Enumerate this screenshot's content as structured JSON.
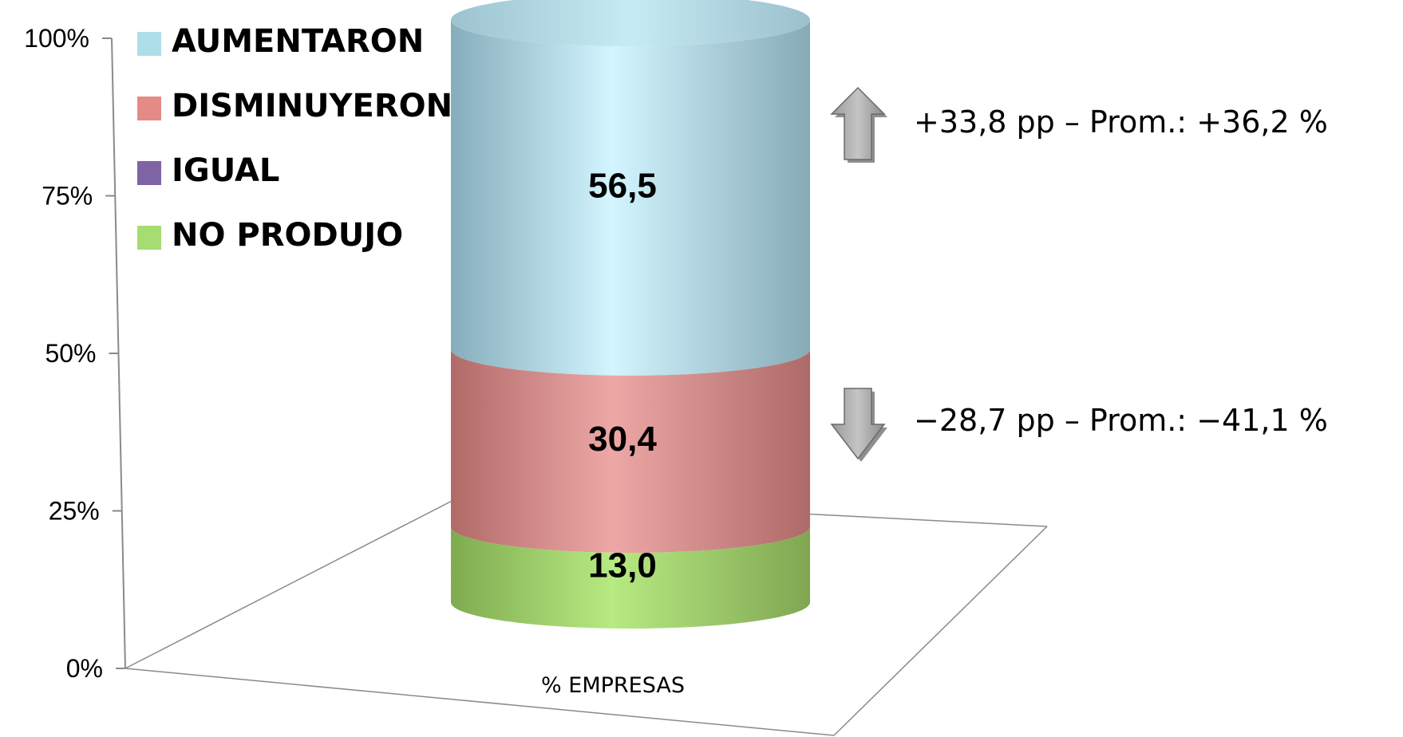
{
  "chart_data": {
    "type": "bar",
    "categories": [
      "% EMPRESAS"
    ],
    "series": [
      {
        "name": "NO PRODUJO",
        "values": [
          13.0
        ],
        "label": "13,0",
        "color": "#aee07a"
      },
      {
        "name": "IGUAL",
        "values": [
          0
        ],
        "label": "",
        "color": "#7e63a5"
      },
      {
        "name": "DISMINUYERON",
        "values": [
          30.4
        ],
        "label": "30,4",
        "color": "#e8a2a0"
      },
      {
        "name": "AUMENTARON",
        "values": [
          56.5
        ],
        "label": "56,5",
        "color": "#bfe7f1"
      }
    ],
    "legend": {
      "placement": "top-left",
      "items": [
        {
          "label": "AUMENTARON",
          "color": "#aedfe9"
        },
        {
          "label": "DISMINUYERON",
          "color": "#e58b87"
        },
        {
          "label": "IGUAL",
          "color": "#7e63a5"
        },
        {
          "label": "NO PRODUJO",
          "color": "#a5dd72"
        }
      ]
    },
    "y_ticks": [
      "0%",
      "25%",
      "50%",
      "75%",
      "100%"
    ],
    "ylim": [
      0,
      100
    ],
    "stacked": "percent",
    "style": "3d-cylinder",
    "annotations": [
      {
        "direction": "up",
        "text": "+33,8 pp  –  Prom.: +36,2 %"
      },
      {
        "direction": "down",
        "text": "−28,7 pp  –  Prom.: −41,1 %"
      }
    ],
    "grid": false
  }
}
